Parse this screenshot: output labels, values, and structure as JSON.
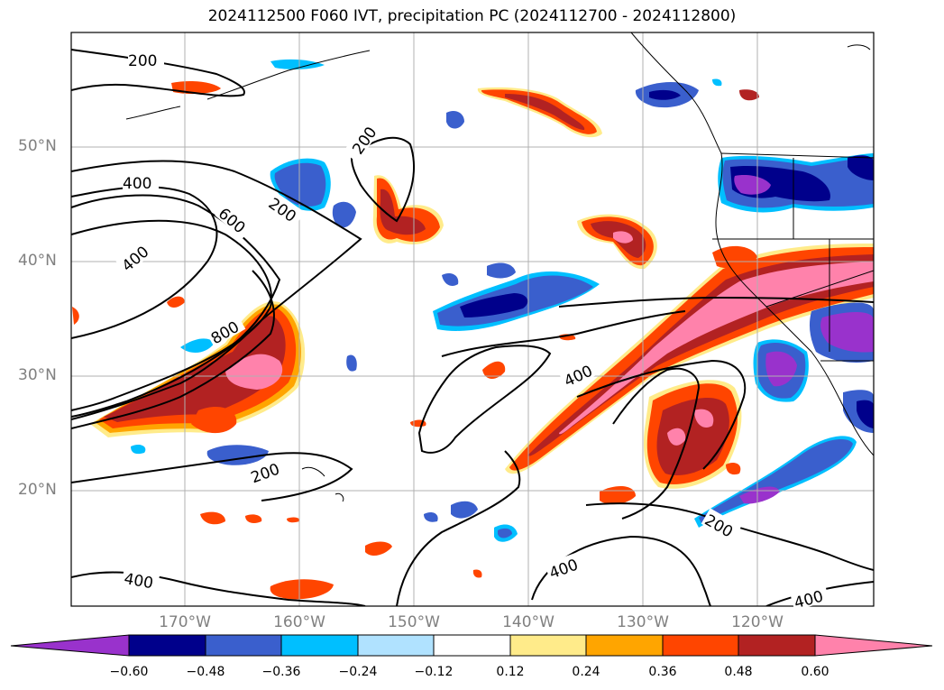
{
  "title": "2024112500 F060 IVT, precipitation PC (2024112700 - 2024112800)",
  "latitude_labels": [
    "50°N",
    "40°N",
    "30°N",
    "20°N"
  ],
  "longitude_labels": [
    "170°W",
    "160°W",
    "150°W",
    "140°W",
    "130°W",
    "120°W"
  ],
  "ivt_contour_labels": [
    "200",
    "200",
    "200",
    "200",
    "200",
    "400",
    "400",
    "400",
    "400",
    "400",
    "400",
    "600",
    "800"
  ],
  "colorbar": {
    "ticks": [
      "−0.60",
      "−0.48",
      "−0.36",
      "−0.24",
      "−0.12",
      "0.12",
      "0.24",
      "0.36",
      "0.48",
      "0.60"
    ],
    "colors": [
      "#9932cc",
      "#00008b",
      "#3a5fcd",
      "#00bfff",
      "#b0e2ff",
      "#ffffff",
      "#ffeb8a",
      "#ffa500",
      "#ff4500",
      "#b22222",
      "#ff82ab"
    ]
  },
  "colors": {
    "frame": "#000000",
    "grid": "#b0b0b0",
    "contour": "#000000",
    "coast": "#000000",
    "axis_label": "#808080"
  }
}
